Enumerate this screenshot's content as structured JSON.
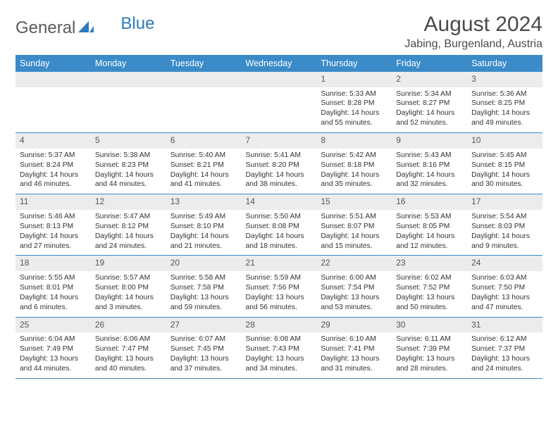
{
  "brand": {
    "part1": "General",
    "part2": "Blue"
  },
  "title": "August 2024",
  "location": "Jabing, Burgenland, Austria",
  "colors": {
    "header_bg": "#3b8bc8",
    "header_text": "#ffffff",
    "daynum_bg": "#ececec",
    "row_border": "#3b8bc8",
    "brand_gray": "#5a5a5a",
    "brand_blue": "#2b7bbf"
  },
  "day_headers": [
    "Sunday",
    "Monday",
    "Tuesday",
    "Wednesday",
    "Thursday",
    "Friday",
    "Saturday"
  ],
  "weeks": [
    [
      null,
      null,
      null,
      null,
      {
        "n": "1",
        "sr": "5:33 AM",
        "ss": "8:28 PM",
        "dl": "14 hours and 55 minutes."
      },
      {
        "n": "2",
        "sr": "5:34 AM",
        "ss": "8:27 PM",
        "dl": "14 hours and 52 minutes."
      },
      {
        "n": "3",
        "sr": "5:36 AM",
        "ss": "8:25 PM",
        "dl": "14 hours and 49 minutes."
      }
    ],
    [
      {
        "n": "4",
        "sr": "5:37 AM",
        "ss": "8:24 PM",
        "dl": "14 hours and 46 minutes."
      },
      {
        "n": "5",
        "sr": "5:38 AM",
        "ss": "8:23 PM",
        "dl": "14 hours and 44 minutes."
      },
      {
        "n": "6",
        "sr": "5:40 AM",
        "ss": "8:21 PM",
        "dl": "14 hours and 41 minutes."
      },
      {
        "n": "7",
        "sr": "5:41 AM",
        "ss": "8:20 PM",
        "dl": "14 hours and 38 minutes."
      },
      {
        "n": "8",
        "sr": "5:42 AM",
        "ss": "8:18 PM",
        "dl": "14 hours and 35 minutes."
      },
      {
        "n": "9",
        "sr": "5:43 AM",
        "ss": "8:16 PM",
        "dl": "14 hours and 32 minutes."
      },
      {
        "n": "10",
        "sr": "5:45 AM",
        "ss": "8:15 PM",
        "dl": "14 hours and 30 minutes."
      }
    ],
    [
      {
        "n": "11",
        "sr": "5:46 AM",
        "ss": "8:13 PM",
        "dl": "14 hours and 27 minutes."
      },
      {
        "n": "12",
        "sr": "5:47 AM",
        "ss": "8:12 PM",
        "dl": "14 hours and 24 minutes."
      },
      {
        "n": "13",
        "sr": "5:49 AM",
        "ss": "8:10 PM",
        "dl": "14 hours and 21 minutes."
      },
      {
        "n": "14",
        "sr": "5:50 AM",
        "ss": "8:08 PM",
        "dl": "14 hours and 18 minutes."
      },
      {
        "n": "15",
        "sr": "5:51 AM",
        "ss": "8:07 PM",
        "dl": "14 hours and 15 minutes."
      },
      {
        "n": "16",
        "sr": "5:53 AM",
        "ss": "8:05 PM",
        "dl": "14 hours and 12 minutes."
      },
      {
        "n": "17",
        "sr": "5:54 AM",
        "ss": "8:03 PM",
        "dl": "14 hours and 9 minutes."
      }
    ],
    [
      {
        "n": "18",
        "sr": "5:55 AM",
        "ss": "8:01 PM",
        "dl": "14 hours and 6 minutes."
      },
      {
        "n": "19",
        "sr": "5:57 AM",
        "ss": "8:00 PM",
        "dl": "14 hours and 3 minutes."
      },
      {
        "n": "20",
        "sr": "5:58 AM",
        "ss": "7:58 PM",
        "dl": "13 hours and 59 minutes."
      },
      {
        "n": "21",
        "sr": "5:59 AM",
        "ss": "7:56 PM",
        "dl": "13 hours and 56 minutes."
      },
      {
        "n": "22",
        "sr": "6:00 AM",
        "ss": "7:54 PM",
        "dl": "13 hours and 53 minutes."
      },
      {
        "n": "23",
        "sr": "6:02 AM",
        "ss": "7:52 PM",
        "dl": "13 hours and 50 minutes."
      },
      {
        "n": "24",
        "sr": "6:03 AM",
        "ss": "7:50 PM",
        "dl": "13 hours and 47 minutes."
      }
    ],
    [
      {
        "n": "25",
        "sr": "6:04 AM",
        "ss": "7:49 PM",
        "dl": "13 hours and 44 minutes."
      },
      {
        "n": "26",
        "sr": "6:06 AM",
        "ss": "7:47 PM",
        "dl": "13 hours and 40 minutes."
      },
      {
        "n": "27",
        "sr": "6:07 AM",
        "ss": "7:45 PM",
        "dl": "13 hours and 37 minutes."
      },
      {
        "n": "28",
        "sr": "6:08 AM",
        "ss": "7:43 PM",
        "dl": "13 hours and 34 minutes."
      },
      {
        "n": "29",
        "sr": "6:10 AM",
        "ss": "7:41 PM",
        "dl": "13 hours and 31 minutes."
      },
      {
        "n": "30",
        "sr": "6:11 AM",
        "ss": "7:39 PM",
        "dl": "13 hours and 28 minutes."
      },
      {
        "n": "31",
        "sr": "6:12 AM",
        "ss": "7:37 PM",
        "dl": "13 hours and 24 minutes."
      }
    ]
  ],
  "labels": {
    "sunrise": "Sunrise: ",
    "sunset": "Sunset: ",
    "daylight": "Daylight: "
  }
}
